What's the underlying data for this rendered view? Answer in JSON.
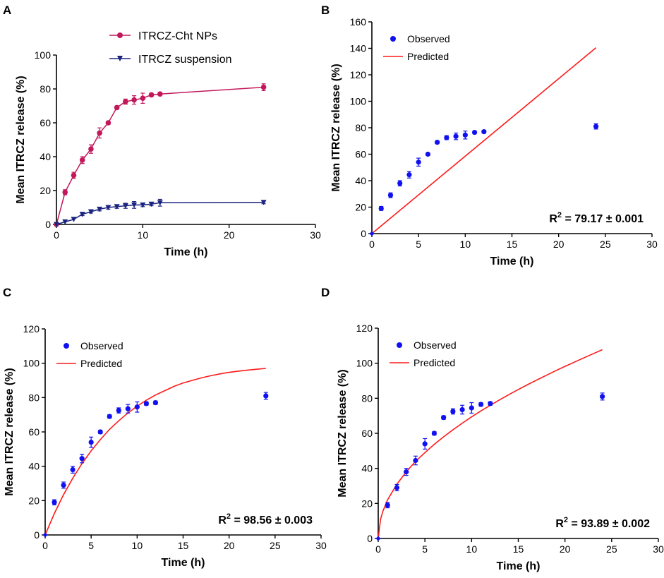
{
  "colors": {
    "nps": "#c2185b",
    "susp": "#1a237e",
    "observed": "#1010f0",
    "predicted": "#ff1a1a",
    "axis": "#000000"
  },
  "chart_data": [
    {
      "panel": "A",
      "type": "line",
      "xlabel": "Time (h)",
      "ylabel": "Mean ITRCZ release (%)",
      "xlim": [
        0,
        30
      ],
      "ylim": [
        0,
        100
      ],
      "xticks": [
        0,
        10,
        20,
        30
      ],
      "yticks": [
        0,
        20,
        40,
        60,
        80,
        100
      ],
      "legend_position": "top",
      "series": [
        {
          "name": "ITRCZ-Cht NPs",
          "marker": "circle",
          "x": [
            0,
            1,
            2,
            3,
            4,
            5,
            6,
            7,
            8,
            9,
            10,
            11,
            12,
            24
          ],
          "y": [
            0,
            19,
            29,
            38,
            44.5,
            54,
            60,
            69,
            72.5,
            73.5,
            74.5,
            76.5,
            77,
            81
          ],
          "err": [
            0,
            1.5,
            1.8,
            2,
            2.5,
            3,
            1,
            1,
            1.5,
            2.5,
            3,
            1,
            1,
            2
          ]
        },
        {
          "name": "ITRCZ suspension",
          "marker": "triangle-down",
          "x": [
            0,
            1,
            2,
            3,
            4,
            5,
            6,
            7,
            8,
            9,
            10,
            11,
            12,
            24
          ],
          "y": [
            0,
            1.5,
            3,
            6,
            7.5,
            9,
            10,
            10.5,
            11,
            11.5,
            11.5,
            12,
            12.8,
            13
          ],
          "err": [
            0,
            0.5,
            0.5,
            0.8,
            0.8,
            1,
            1,
            1,
            1.5,
            2,
            1,
            1,
            2,
            0.8
          ]
        }
      ]
    },
    {
      "panel": "B",
      "type": "scatter",
      "xlabel": "Time (h)",
      "ylabel": "Mean ITRCZ release (%)",
      "xlim": [
        0,
        30
      ],
      "ylim": [
        0,
        160
      ],
      "xticks": [
        0,
        5,
        10,
        15,
        20,
        25,
        30
      ],
      "yticks": [
        0,
        20,
        40,
        60,
        80,
        100,
        120,
        140,
        160
      ],
      "legend_position": "top-left",
      "annotation": {
        "base": "R",
        "sup": "2",
        "rest": " = 79.17 ± 0.001"
      },
      "observed": {
        "name": "Observed",
        "x": [
          0,
          1,
          2,
          3,
          4,
          5,
          6,
          7,
          8,
          9,
          10,
          11,
          12,
          24
        ],
        "y": [
          0,
          19,
          29,
          38,
          44.5,
          54,
          60,
          69,
          72.5,
          73.5,
          74.5,
          76.5,
          77,
          81
        ],
        "err": [
          0,
          1.5,
          1.8,
          2,
          2.5,
          3,
          1,
          1,
          1.5,
          2.5,
          3,
          1,
          1,
          2
        ]
      },
      "predicted": {
        "name": "Predicted",
        "x": [
          0,
          24
        ],
        "y": [
          0,
          140.5
        ]
      }
    },
    {
      "panel": "C",
      "type": "scatter",
      "xlabel": "Time (h)",
      "ylabel": "Mean ITRCZ release (%)",
      "xlim": [
        0,
        30
      ],
      "ylim": [
        0,
        120
      ],
      "xticks": [
        0,
        5,
        10,
        15,
        20,
        25,
        30
      ],
      "yticks": [
        0,
        20,
        40,
        60,
        80,
        100,
        120
      ],
      "legend_position": "top-left",
      "annotation": {
        "base": "R",
        "sup": "2",
        "rest": " = 98.56 ± 0.003"
      },
      "observed": {
        "name": "Observed",
        "x": [
          0,
          1,
          2,
          3,
          4,
          5,
          6,
          7,
          8,
          9,
          10,
          11,
          12,
          24
        ],
        "y": [
          0,
          19,
          29,
          38,
          44.5,
          54,
          60,
          69,
          72.5,
          73.5,
          74.5,
          76.5,
          77,
          81
        ],
        "err": [
          0,
          1.5,
          1.8,
          2,
          2.5,
          3,
          1,
          1,
          1.5,
          2.5,
          3,
          1,
          1,
          2
        ]
      },
      "predicted": {
        "name": "Predicted",
        "x": [
          0,
          1,
          2,
          3,
          4,
          5,
          6,
          7,
          8,
          9,
          10,
          11,
          12,
          13,
          14,
          15,
          16,
          17,
          18,
          19,
          20,
          21,
          22,
          23,
          24
        ],
        "y": [
          0,
          12.5,
          23.5,
          33,
          41.5,
          49,
          55.5,
          61.5,
          66.5,
          71,
          75,
          78.5,
          81.5,
          84,
          86.5,
          88.5,
          90,
          91.5,
          92.7,
          93.8,
          94.7,
          95.4,
          96,
          96.5,
          97
        ]
      }
    },
    {
      "panel": "D",
      "type": "scatter",
      "xlabel": "Time (h)",
      "ylabel": "Mean ITRCZ release (%)",
      "xlim": [
        0,
        30
      ],
      "ylim": [
        0,
        120
      ],
      "xticks": [
        0,
        5,
        10,
        15,
        20,
        25,
        30
      ],
      "yticks": [
        0,
        20,
        40,
        60,
        80,
        100,
        120
      ],
      "legend_position": "top-left",
      "annotation": {
        "base": "R",
        "sup": "2",
        "rest": " = 93.89 ± 0.002"
      },
      "observed": {
        "name": "Observed",
        "x": [
          0,
          1,
          2,
          3,
          4,
          5,
          6,
          7,
          8,
          9,
          10,
          11,
          12,
          24
        ],
        "y": [
          0,
          19,
          29,
          38,
          44.5,
          54,
          60,
          69,
          72.5,
          73.5,
          74.5,
          76.5,
          77,
          81
        ],
        "err": [
          0,
          1.5,
          1.8,
          2,
          2.5,
          3,
          1,
          1,
          1.5,
          2.5,
          3,
          1,
          1,
          2
        ]
      },
      "predicted": {
        "name": "Predicted",
        "x": [
          0,
          0.25,
          0.5,
          1,
          2,
          3,
          4,
          5,
          6,
          7,
          8,
          9,
          10,
          11,
          12,
          13,
          14,
          15,
          16,
          17,
          18,
          19,
          20,
          21,
          22,
          23,
          24
        ],
        "y": [
          0,
          11,
          15.5,
          22,
          31,
          38,
          44,
          49,
          53.7,
          58,
          62,
          65.8,
          69.4,
          72.8,
          76,
          79.1,
          82.1,
          85,
          87.8,
          90.5,
          93.1,
          95.7,
          98.2,
          100.6,
          103,
          105.4,
          107.7
        ]
      }
    }
  ]
}
